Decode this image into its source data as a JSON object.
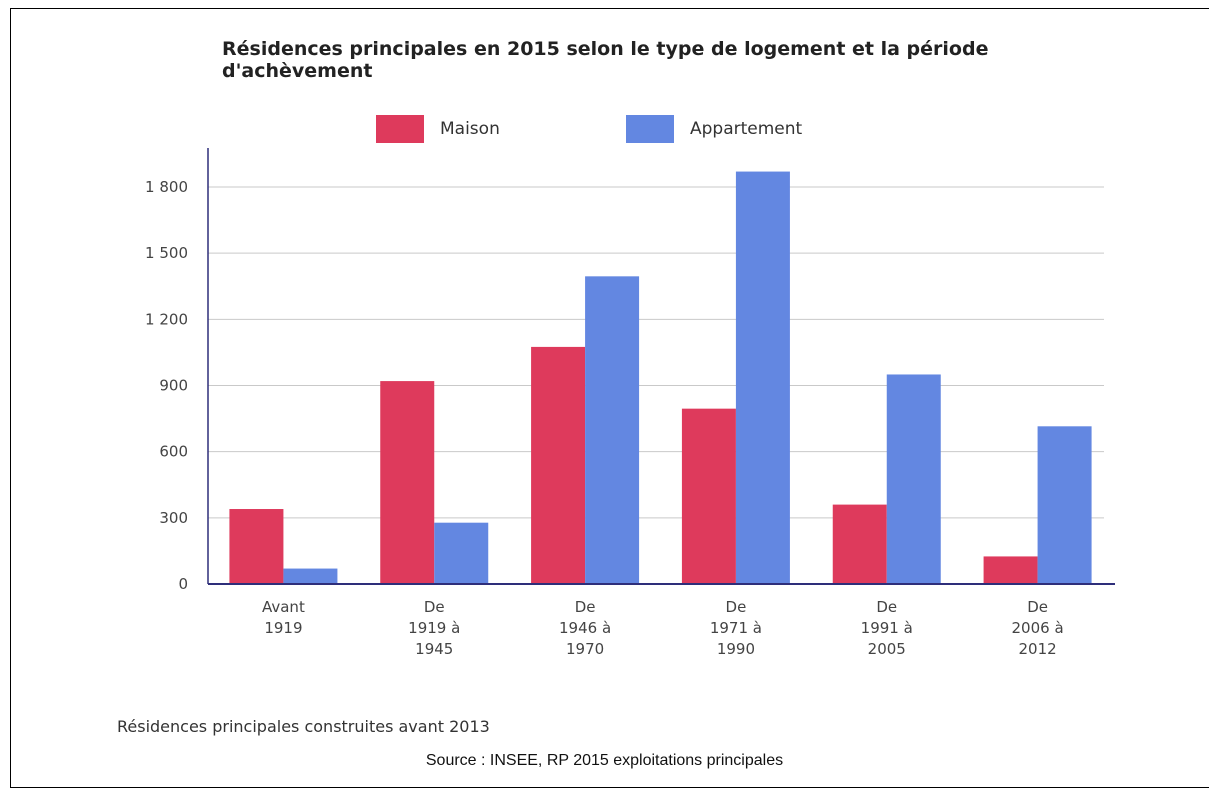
{
  "chart_data": {
    "type": "bar",
    "title": "Résidences principales en 2015 selon le type de logement et la période d'achèvement",
    "categories": [
      [
        "Avant",
        "1919"
      ],
      [
        "De",
        "1919 à",
        "1945"
      ],
      [
        "De",
        "1946 à",
        "1970"
      ],
      [
        "De",
        "1971 à",
        "1990"
      ],
      [
        "De",
        "1991 à",
        "2005"
      ],
      [
        "De",
        "2006 à",
        "2012"
      ]
    ],
    "series": [
      {
        "name": "Maison",
        "color": "#de3a5c",
        "values": [
          340,
          920,
          1075,
          795,
          360,
          125
        ]
      },
      {
        "name": "Appartement",
        "color": "#6387e1",
        "values": [
          70,
          278,
          1395,
          1870,
          950,
          715
        ]
      }
    ],
    "ylim": [
      0,
      1800
    ],
    "yticks": [
      0,
      300,
      600,
      900,
      1200,
      1500,
      1800
    ],
    "ytick_labels": [
      "0",
      "300",
      "600",
      "900",
      "1 200",
      "1 500",
      "1 800"
    ],
    "legend": "top",
    "grid": true
  },
  "footnote": "Résidences principales construites avant 2013",
  "source": "Source : INSEE, RP 2015 exploitations principales"
}
